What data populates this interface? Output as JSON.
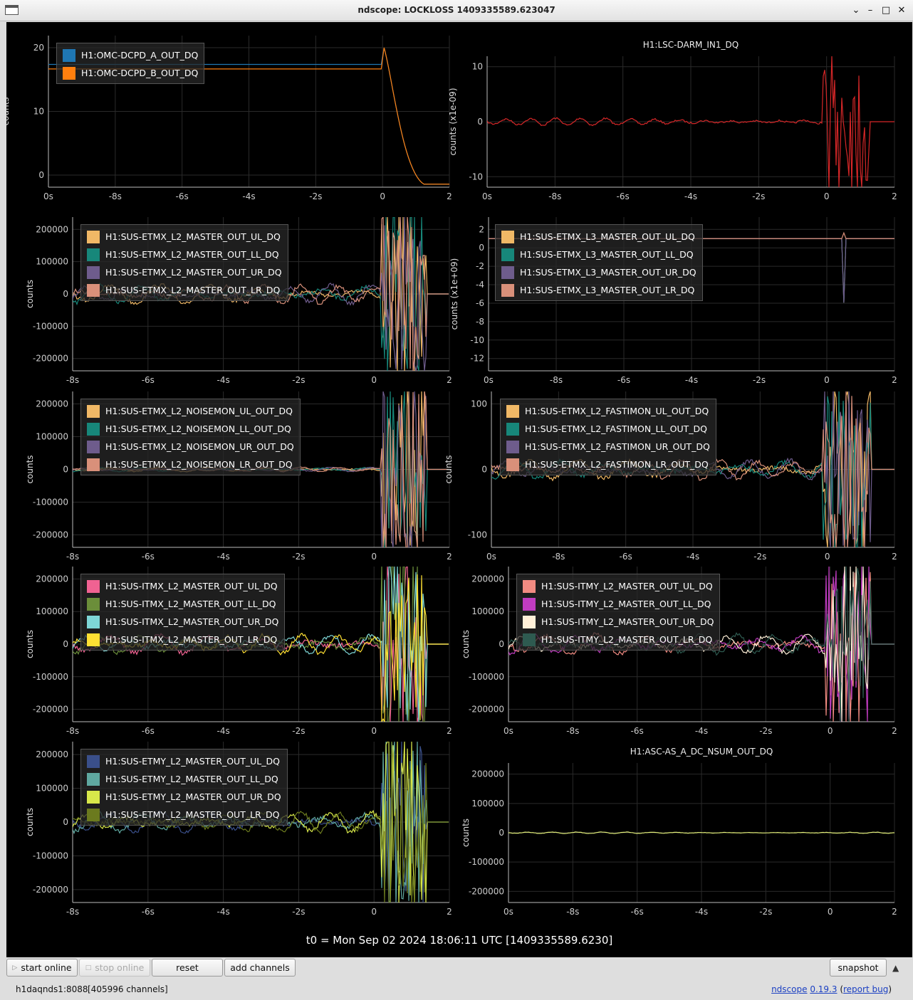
{
  "window": {
    "title": "ndscope: LOCKLOSS 1409335589.623047"
  },
  "t0_label": "t0 = Mon Sep 02 2024 18:06:11 UTC [1409335589.6230]",
  "colors": {
    "background": "#000000",
    "grid": "#2a2a2a",
    "axis": "#bbbbbb"
  },
  "toolbar": {
    "start_online": "start online",
    "stop_online": "stop online",
    "reset": "reset",
    "add_channels": "add channels",
    "snapshot": "snapshot"
  },
  "status": {
    "server": "h1daqnds1:8088",
    "channels": "[405996 channels]",
    "app_name": "ndscope",
    "version": "0.19.3",
    "report_bug": "report bug"
  },
  "panels": [
    {
      "title": "",
      "ylabel": "counts",
      "yticks": [
        "20",
        "10",
        "0"
      ],
      "xticks": [
        "0s",
        "-8s",
        "-6s",
        "-4s",
        "-2s",
        "0",
        "2"
      ],
      "legend": [
        {
          "name": "H1:OMC-DCPD_A_OUT_DQ",
          "color": "#1f77b4"
        },
        {
          "name": "H1:OMC-DCPD_B_OUT_DQ",
          "color": "#ff7f0e"
        }
      ]
    },
    {
      "title": "H1:LSC-DARM_IN1_DQ",
      "ylabel": "counts (x1e-09)",
      "yticks": [
        "10",
        "0",
        "-10"
      ],
      "xticks": [
        "0s",
        "-8s",
        "-6s",
        "-4s",
        "-2s",
        "0",
        "2"
      ],
      "legend": [
        {
          "name": "H1:LSC-DARM_IN1_DQ",
          "color": "#d62728"
        }
      ]
    },
    {
      "title": "",
      "ylabel": "counts",
      "yticks": [
        "200000",
        "100000",
        "0",
        "-100000",
        "-200000"
      ],
      "xticks": [
        "-8s",
        "-6s",
        "-4s",
        "-2s",
        "0",
        "2"
      ],
      "legend": [
        {
          "name": "H1:SUS-ETMX_L2_MASTER_OUT_UL_DQ",
          "color": "#f0b866"
        },
        {
          "name": "H1:SUS-ETMX_L2_MASTER_OUT_LL_DQ",
          "color": "#17877a"
        },
        {
          "name": "H1:SUS-ETMX_L2_MASTER_OUT_UR_DQ",
          "color": "#6e5c8c"
        },
        {
          "name": "H1:SUS-ETMX_L2_MASTER_OUT_LR_DQ",
          "color": "#d9907a"
        }
      ]
    },
    {
      "title": "",
      "ylabel": "counts (x1e+09)",
      "yticks": [
        "2",
        "0",
        "-2",
        "-4",
        "-6",
        "-8",
        "-10",
        "-12"
      ],
      "xticks": [
        "0s",
        "-8s",
        "-6s",
        "-4s",
        "-2s",
        "0",
        "2"
      ],
      "legend": [
        {
          "name": "H1:SUS-ETMX_L3_MASTER_OUT_UL_DQ",
          "color": "#f0b866"
        },
        {
          "name": "H1:SUS-ETMX_L3_MASTER_OUT_LL_DQ",
          "color": "#17877a"
        },
        {
          "name": "H1:SUS-ETMX_L3_MASTER_OUT_UR_DQ",
          "color": "#6e5c8c"
        },
        {
          "name": "H1:SUS-ETMX_L3_MASTER_OUT_LR_DQ",
          "color": "#d9907a"
        }
      ]
    },
    {
      "title": "",
      "ylabel": "counts",
      "yticks": [
        "200000",
        "100000",
        "0",
        "-100000",
        "-200000"
      ],
      "xticks": [
        "-8s",
        "-6s",
        "-4s",
        "-2s",
        "0",
        "2"
      ],
      "legend": [
        {
          "name": "H1:SUS-ETMX_L2_NOISEMON_UL_OUT_DQ",
          "color": "#f0b866"
        },
        {
          "name": "H1:SUS-ETMX_L2_NOISEMON_LL_OUT_DQ",
          "color": "#17877a"
        },
        {
          "name": "H1:SUS-ETMX_L2_NOISEMON_UR_OUT_DQ",
          "color": "#6e5c8c"
        },
        {
          "name": "H1:SUS-ETMX_L2_NOISEMON_LR_OUT_DQ",
          "color": "#d9907a"
        }
      ]
    },
    {
      "title": "",
      "ylabel": "counts",
      "yticks": [
        "100",
        "0",
        "-100"
      ],
      "xticks": [
        "0s",
        "-8s",
        "-6s",
        "-4s",
        "-2s",
        "0",
        "2"
      ],
      "legend": [
        {
          "name": "H1:SUS-ETMX_L2_FASTIMON_UL_OUT_DQ",
          "color": "#f0b866"
        },
        {
          "name": "H1:SUS-ETMX_L2_FASTIMON_LL_OUT_DQ",
          "color": "#17877a"
        },
        {
          "name": "H1:SUS-ETMX_L2_FASTIMON_UR_OUT_DQ",
          "color": "#6e5c8c"
        },
        {
          "name": "H1:SUS-ETMX_L2_FASTIMON_LR_OUT_DQ",
          "color": "#d9907a"
        }
      ]
    },
    {
      "title": "",
      "ylabel": "counts",
      "yticks": [
        "200000",
        "100000",
        "0",
        "-100000",
        "-200000"
      ],
      "xticks": [
        "-8s",
        "-6s",
        "-4s",
        "-2s",
        "0",
        "2"
      ],
      "legend": [
        {
          "name": "H1:SUS-ITMX_L2_MASTER_OUT_UL_DQ",
          "color": "#f06292"
        },
        {
          "name": "H1:SUS-ITMX_L2_MASTER_OUT_LL_DQ",
          "color": "#6b8e3a"
        },
        {
          "name": "H1:SUS-ITMX_L2_MASTER_OUT_UR_DQ",
          "color": "#7ed6d6"
        },
        {
          "name": "H1:SUS-ITMX_L2_MASTER_OUT_LR_DQ",
          "color": "#ffe033"
        }
      ]
    },
    {
      "title": "",
      "ylabel": "counts",
      "yticks": [
        "200000",
        "100000",
        "0",
        "-100000",
        "-200000"
      ],
      "xticks": [
        "0s",
        "-8s",
        "-6s",
        "-4s",
        "-2s",
        "0",
        "2"
      ],
      "legend": [
        {
          "name": "H1:SUS-ITMY_L2_MASTER_OUT_UL_DQ",
          "color": "#f28b82"
        },
        {
          "name": "H1:SUS-ITMY_L2_MASTER_OUT_LL_DQ",
          "color": "#c03cc0"
        },
        {
          "name": "H1:SUS-ITMY_L2_MASTER_OUT_UR_DQ",
          "color": "#fff0d8"
        },
        {
          "name": "H1:SUS-ITMY_L2_MASTER_OUT_LR_DQ",
          "color": "#2e5a50"
        }
      ]
    },
    {
      "title": "",
      "ylabel": "counts",
      "yticks": [
        "200000",
        "100000",
        "0",
        "-100000",
        "-200000"
      ],
      "xticks": [
        "-8s",
        "-6s",
        "-4s",
        "-2s",
        "0",
        "2"
      ],
      "legend": [
        {
          "name": "H1:SUS-ETMY_L2_MASTER_OUT_UL_DQ",
          "color": "#3a4f8a"
        },
        {
          "name": "H1:SUS-ETMY_L2_MASTER_OUT_LL_DQ",
          "color": "#5fa8a0"
        },
        {
          "name": "H1:SUS-ETMY_L2_MASTER_OUT_UR_DQ",
          "color": "#d8e84a"
        },
        {
          "name": "H1:SUS-ETMY_L2_MASTER_OUT_LR_DQ",
          "color": "#6b7a1e"
        }
      ]
    },
    {
      "title": "H1:ASC-AS_A_DC_NSUM_OUT_DQ",
      "ylabel": "counts",
      "yticks": [
        "200000",
        "100000",
        "0",
        "-100000",
        "-200000"
      ],
      "xticks": [
        "0s",
        "-8s",
        "-6s",
        "-4s",
        "-2s",
        "0",
        "2"
      ],
      "legend": [
        {
          "name": "H1:ASC-AS_A_DC_NSUM_OUT_DQ",
          "color": "#e2ee7a"
        }
      ]
    }
  ]
}
